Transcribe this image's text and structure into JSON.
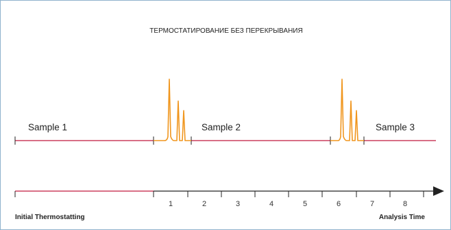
{
  "title": "ТЕРМОСТАТИРОВАНИЕ БЕЗ ПЕРЕКРЫВАНИЯ",
  "samples": [
    "Sample 1",
    "Sample 2",
    "Sample 3"
  ],
  "ticks": [
    "1",
    "2",
    "3",
    "4",
    "5",
    "6",
    "7",
    "8"
  ],
  "axis": {
    "left_label": "Initial Thermostatting",
    "right_label": "Analysis Time"
  },
  "colors": {
    "segment_line": "#c0183c",
    "peaks": "#f0961e",
    "axis": "#222222",
    "frame": "#8fb2cc"
  }
}
